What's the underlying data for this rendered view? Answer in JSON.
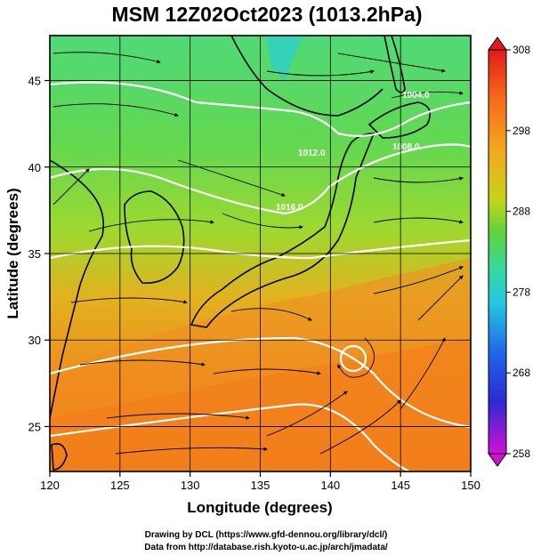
{
  "title": "MSM 12Z02Oct2023 (1013.2hPa)",
  "axes": {
    "xlabel": "Longitude (degrees)",
    "ylabel": "Latitude  (degrees)",
    "xlim": [
      120,
      150
    ],
    "ylim": [
      22.4,
      47.6
    ],
    "xticks": [
      "120",
      "125",
      "130",
      "135",
      "140",
      "145",
      "150"
    ],
    "yticks": [
      "25",
      "30",
      "35",
      "40",
      "45"
    ],
    "grid": true
  },
  "colorbar": {
    "labels": [
      "308",
      "298",
      "288",
      "278",
      "268",
      "258"
    ],
    "range": [
      258,
      308
    ]
  },
  "contour_labels": [
    "1004.0",
    "1008.0",
    "1012.0",
    "1016.0"
  ],
  "credits": {
    "line1": "Drawing by DCL (https://www.gfd-dennou.org/library/dcl/)",
    "line2": "Data from http://database.rish.kyoto-u.ac.jp/arch/jmadata/"
  },
  "colors": {
    "land_outline": "#000000",
    "isobar": "#ffffff",
    "cold": "#3ad08a",
    "mild": "#6ad83c",
    "warm": "#e3b020",
    "hot": "#f27a18"
  },
  "map_features": [
    "japan-coast",
    "korea-coast",
    "china-coast",
    "sakhalin-coast",
    "taiwan-coast",
    "typhoon-circulation"
  ]
}
